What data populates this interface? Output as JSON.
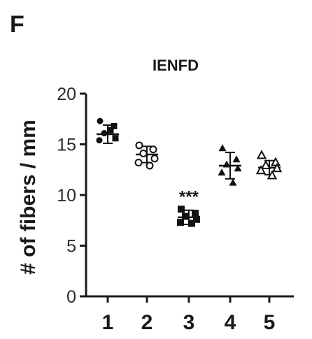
{
  "chart_data": {
    "type": "scatter",
    "panel_label": "F",
    "title": "IENFD",
    "ylabel": "# of fibers / mm",
    "xlabel": "",
    "ylim": [
      0,
      20
    ],
    "yticks": [
      0,
      5,
      10,
      15,
      20
    ],
    "categories": [
      "1",
      "2",
      "3",
      "4",
      "5"
    ],
    "grid": false,
    "series": [
      {
        "category": "1",
        "marker": "filled-circle-square",
        "mean": 16.0,
        "sd": 0.9,
        "points": [
          17.3,
          16.8,
          16.1,
          15.6,
          15.4,
          16.4
        ]
      },
      {
        "category": "2",
        "marker": "open-circle",
        "mean": 14.0,
        "sd": 0.8,
        "points": [
          14.9,
          14.5,
          14.1,
          13.6,
          13.2,
          12.9
        ]
      },
      {
        "category": "3",
        "marker": "filled-square",
        "mean": 7.8,
        "sd": 0.7,
        "points": [
          8.6,
          8.2,
          7.9,
          7.6,
          7.3,
          7.2
        ]
      },
      {
        "category": "4",
        "marker": "filled-triangle",
        "mean": 12.9,
        "sd": 1.3,
        "points": [
          14.6,
          13.5,
          13.0,
          12.6,
          12.2,
          11.2
        ]
      },
      {
        "category": "5",
        "marker": "open-triangle",
        "mean": 12.7,
        "sd": 0.7,
        "points": [
          13.9,
          13.2,
          12.9,
          12.6,
          12.4,
          11.9
        ]
      }
    ],
    "annotations": [
      {
        "category": "3",
        "text": "***"
      }
    ]
  }
}
